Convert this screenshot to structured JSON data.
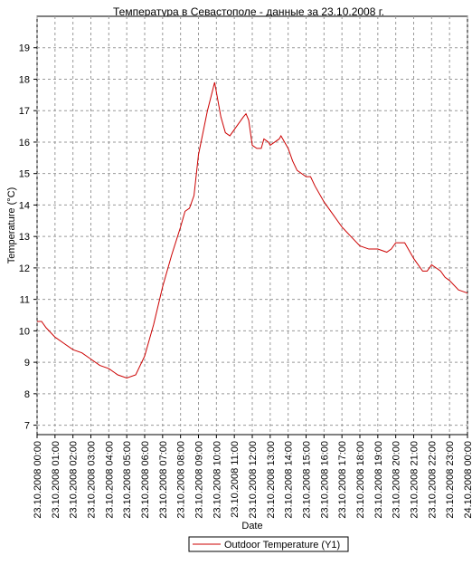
{
  "chart_data": {
    "type": "line",
    "title": "Температура в Севастополе - данные за 23.10.2008 г.",
    "x_label": "Date",
    "y_label": "Temperature (°C)",
    "x": [
      0,
      0.25,
      0.5,
      1,
      1.5,
      2,
      2.5,
      3,
      3.5,
      4,
      4.5,
      5,
      5.5,
      6,
      6.5,
      7,
      7.5,
      8,
      8.25,
      8.5,
      8.75,
      9,
      9.5,
      9.9,
      10.25,
      10.5,
      10.75,
      11,
      11.5,
      11.65,
      11.8,
      12,
      12.25,
      12.5,
      12.65,
      12.9,
      13,
      13.5,
      13.6,
      14,
      14.25,
      14.5,
      15,
      15.25,
      15.5,
      16,
      16.5,
      17,
      17.5,
      18,
      18.5,
      19,
      19.5,
      19.75,
      20,
      20.5,
      21,
      21.5,
      21.75,
      22,
      22.25,
      22.5,
      22.75,
      23,
      23.5,
      24
    ],
    "series": [
      {
        "name": "Outdoor Temperature (Y1)",
        "color": "#cc0000",
        "values": [
          10.3,
          10.3,
          10.1,
          9.8,
          9.6,
          9.4,
          9.3,
          9.1,
          8.9,
          8.8,
          8.6,
          8.5,
          8.6,
          9.2,
          10.2,
          11.4,
          12.4,
          13.3,
          13.8,
          13.9,
          14.3,
          15.6,
          17.0,
          17.9,
          16.8,
          16.3,
          16.2,
          16.4,
          16.8,
          16.9,
          16.7,
          15.9,
          15.8,
          15.8,
          16.1,
          16.0,
          15.9,
          16.1,
          16.2,
          15.8,
          15.4,
          15.1,
          14.9,
          14.9,
          14.6,
          14.1,
          13.7,
          13.3,
          13.0,
          12.7,
          12.6,
          12.6,
          12.5,
          12.6,
          12.8,
          12.8,
          12.3,
          11.9,
          11.9,
          12.1,
          12.0,
          11.9,
          11.7,
          11.6,
          11.3,
          11.2
        ]
      }
    ],
    "xlim": [
      0,
      24
    ],
    "xticks": [
      {
        "value": 0,
        "label": "23.10.2008 00:00"
      },
      {
        "value": 1,
        "label": "23.10.2008 01:00"
      },
      {
        "value": 2,
        "label": "23.10.2008 02:00"
      },
      {
        "value": 3,
        "label": "23.10.2008 03:00"
      },
      {
        "value": 4,
        "label": "23.10.2008 04:00"
      },
      {
        "value": 5,
        "label": "23.10.2008 05:00"
      },
      {
        "value": 6,
        "label": "23.10.2008 06:00"
      },
      {
        "value": 7,
        "label": "23.10.2008 07:00"
      },
      {
        "value": 8,
        "label": "23.10.2008 08:00"
      },
      {
        "value": 9,
        "label": "23.10.2008 09:00"
      },
      {
        "value": 10,
        "label": "23.10.2008 10:00"
      },
      {
        "value": 11,
        "label": "23.10.2008 11:00"
      },
      {
        "value": 12,
        "label": "23.10.2008 12:00"
      },
      {
        "value": 13,
        "label": "23.10.2008 13:00"
      },
      {
        "value": 14,
        "label": "23.10.2008 14:00"
      },
      {
        "value": 15,
        "label": "23.10.2008 15:00"
      },
      {
        "value": 16,
        "label": "23.10.2008 16:00"
      },
      {
        "value": 17,
        "label": "23.10.2008 17:00"
      },
      {
        "value": 18,
        "label": "23.10.2008 18:00"
      },
      {
        "value": 19,
        "label": "23.10.2008 19:00"
      },
      {
        "value": 20,
        "label": "23.10.2008 20:00"
      },
      {
        "value": 21,
        "label": "23.10.2008 21:00"
      },
      {
        "value": 22,
        "label": "23.10.2008 22:00"
      },
      {
        "value": 23,
        "label": "23.10.2008 23:00"
      },
      {
        "value": 24,
        "label": "24.10.2008 00:00"
      }
    ],
    "ylim": [
      6.7,
      20
    ],
    "yticks": [
      7,
      8,
      9,
      10,
      11,
      12,
      13,
      14,
      15,
      16,
      17,
      18,
      19
    ],
    "grid": true
  }
}
